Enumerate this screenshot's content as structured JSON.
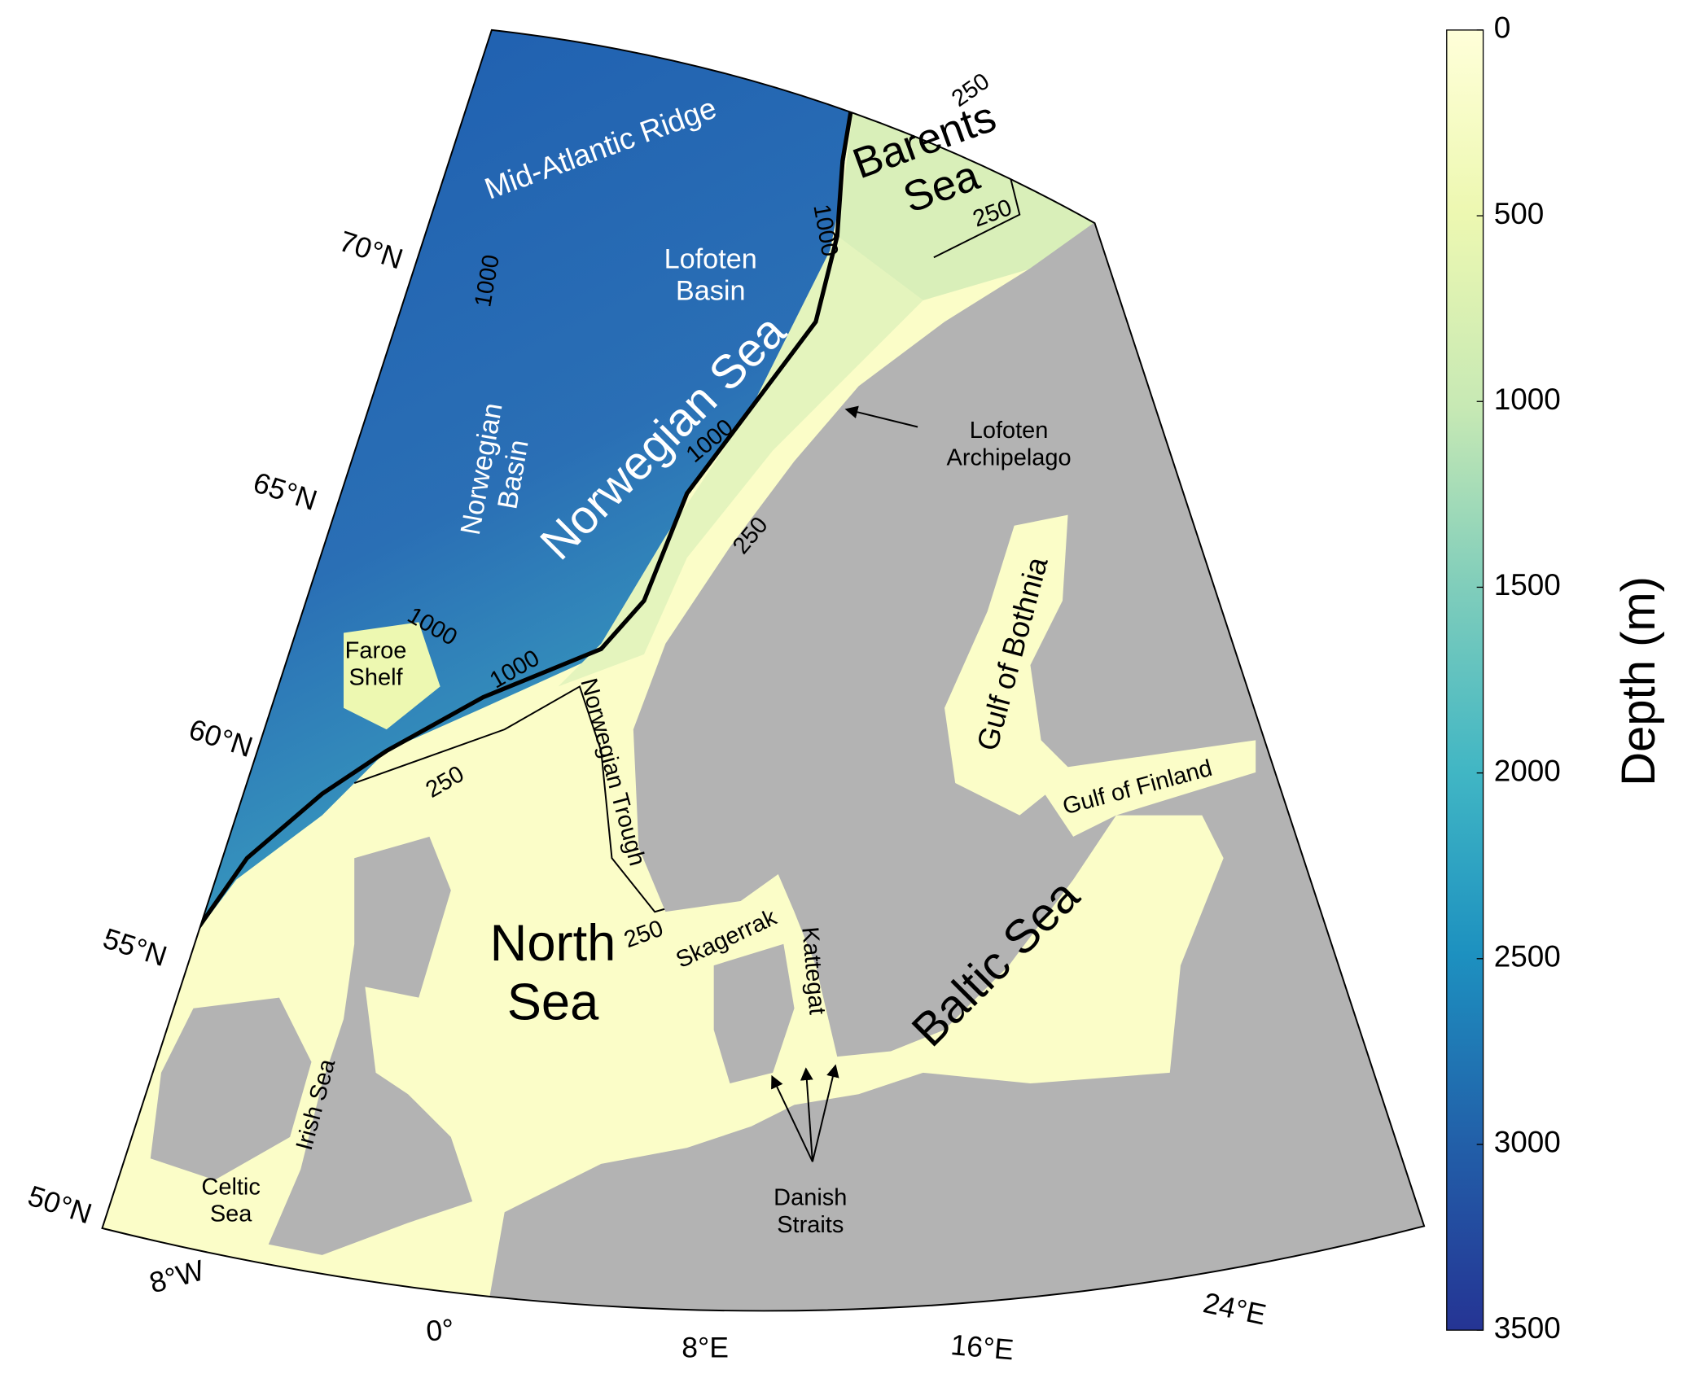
{
  "map": {
    "lat_labels": [
      "50°N",
      "55°N",
      "60°N",
      "65°N",
      "70°N"
    ],
    "lon_labels": [
      "8°W",
      "0°",
      "8°E",
      "16°E",
      "24°E"
    ],
    "place_labels": [
      {
        "lines": [
          "Mid-Atlantic Ridge"
        ]
      },
      {
        "lines": [
          "Barents",
          "Sea"
        ]
      },
      {
        "lines": [
          "Lofoten",
          "Basin"
        ]
      },
      {
        "lines": [
          "Norwegian Sea"
        ]
      },
      {
        "lines": [
          "Norwegian",
          "Basin"
        ]
      },
      {
        "lines": [
          "Lofoten",
          "Archipelago"
        ]
      },
      {
        "lines": [
          "Faroe",
          "Shelf"
        ]
      },
      {
        "lines": [
          "Norwegian Trough"
        ]
      },
      {
        "lines": [
          "North",
          "Sea"
        ]
      },
      {
        "lines": [
          "Skagerrak"
        ]
      },
      {
        "lines": [
          "Kattegat"
        ]
      },
      {
        "lines": [
          "Baltic Sea"
        ]
      },
      {
        "lines": [
          "Gulf of Bothnia"
        ]
      },
      {
        "lines": [
          "Gulf of Finland"
        ]
      },
      {
        "lines": [
          "Irish Sea"
        ]
      },
      {
        "lines": [
          "Celtic",
          "Sea"
        ]
      },
      {
        "lines": [
          "Danish",
          "Straits"
        ]
      }
    ],
    "contour_labels": [
      250,
      250,
      1000,
      1000,
      1000,
      250,
      1000,
      1000,
      250,
      250
    ]
  },
  "colorbar": {
    "label": "Depth (m)",
    "lim": [
      0,
      3500
    ],
    "ticks": [
      0,
      500,
      1000,
      1500,
      2000,
      2500,
      3000,
      3500
    ]
  }
}
